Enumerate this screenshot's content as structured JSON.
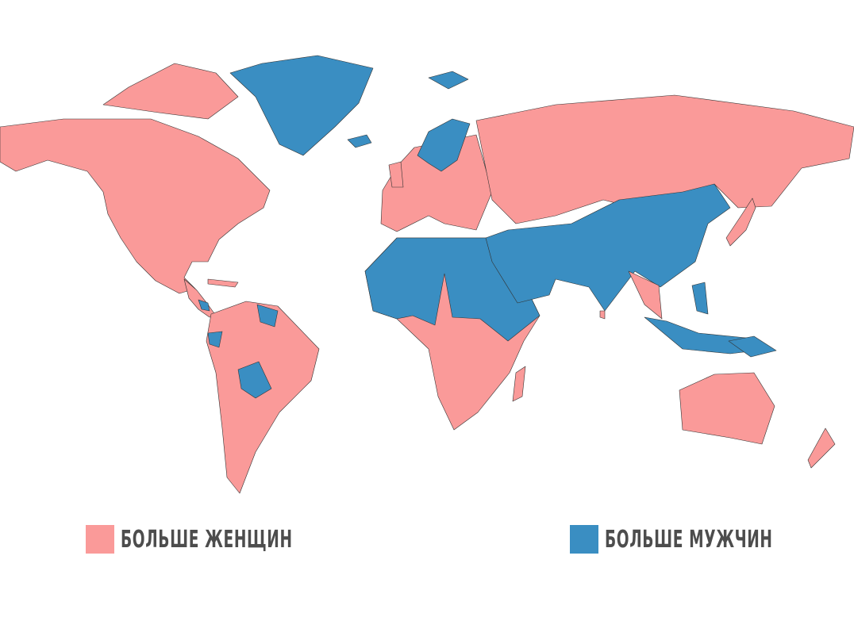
{
  "colors": {
    "more_women": "#fa9a99",
    "more_men": "#3a8ec2",
    "border": "#333333",
    "legend_text": "#4d4d4d"
  },
  "legend": [
    {
      "label": "БОЛЬШЕ ЖЕНЩИН",
      "color": "#fa9a99"
    },
    {
      "label": "БОЛЬШЕ МУЖЧИН",
      "color": "#3a8ec2"
    }
  ]
}
